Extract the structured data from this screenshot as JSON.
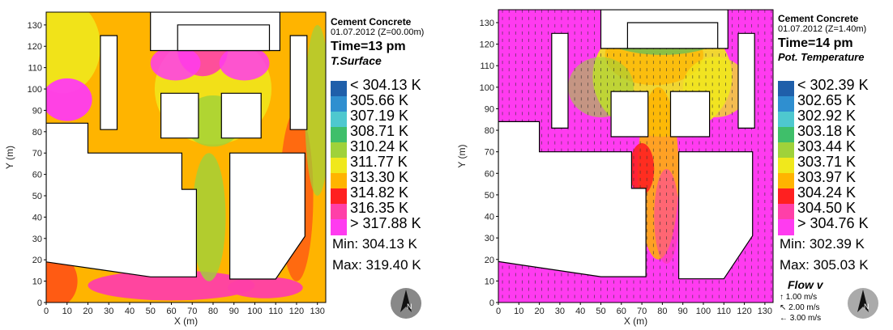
{
  "chart_data": [
    {
      "type": "heatmap",
      "title": "Cement Concrete",
      "date_line": "01.07.2012 (Z=00.00m)",
      "time_line": "Time=13 pm",
      "variable": "T.Surface",
      "xlabel": "X (m)",
      "ylabel": "Y (m)",
      "xlim": [
        0,
        134
      ],
      "ylim": [
        0,
        136
      ],
      "x_ticks": [
        0,
        10,
        20,
        30,
        40,
        50,
        60,
        70,
        80,
        90,
        100,
        110,
        120,
        130
      ],
      "y_ticks": [
        0,
        10,
        20,
        30,
        40,
        50,
        60,
        70,
        80,
        90,
        100,
        110,
        120,
        130
      ],
      "legend_labels": [
        "< 304.13 K",
        "305.66  K",
        "307.19  K",
        "308.71  K",
        "310.24  K",
        "311.77  K",
        "313.30  K",
        "314.82  K",
        "316.35  K",
        "> 317.88  K"
      ],
      "colors": [
        "#1f5faa",
        "#2f8fd0",
        "#4ec8cf",
        "#3fbf6a",
        "#9fd23a",
        "#f0e81c",
        "#ffb400",
        "#ff2020",
        "#ff3fa8",
        "#ff3bf0"
      ],
      "min_text": "Min: 304.13 K",
      "max_text": "Max: 319.40 K"
    },
    {
      "type": "heatmap",
      "title": "Cement Concrete",
      "date_line": "01.07.2012 (Z=1.40m)",
      "time_line": "Time=14 pm",
      "variable": "Pot. Temperature",
      "xlabel": "X (m)",
      "ylabel": "Y (m)",
      "xlim": [
        0,
        134
      ],
      "ylim": [
        0,
        136
      ],
      "x_ticks": [
        0,
        10,
        20,
        30,
        40,
        50,
        60,
        70,
        80,
        90,
        100,
        110,
        120,
        130
      ],
      "y_ticks": [
        0,
        10,
        20,
        30,
        40,
        50,
        60,
        70,
        80,
        90,
        100,
        110,
        120,
        130
      ],
      "legend_labels": [
        "< 302.39  K",
        "302.65  K",
        "302.92  K",
        "303.18  K",
        "303.44  K",
        "303.71  K",
        "303.97  K",
        "304.24  K",
        "304.50  K",
        "> 304.76  K"
      ],
      "colors": [
        "#1f5faa",
        "#2f8fd0",
        "#4ec8cf",
        "#3fbf6a",
        "#9fd23a",
        "#f0e81c",
        "#ffb400",
        "#ff2020",
        "#ff3fa8",
        "#ff3bf0"
      ],
      "min_text": "Min: 302.39 K",
      "max_text": "Max: 305.03 K",
      "flow": {
        "title": "Flow v",
        "items": [
          "1.00 m/s",
          "2.00 m/s",
          "3.00 m/s"
        ]
      }
    }
  ]
}
